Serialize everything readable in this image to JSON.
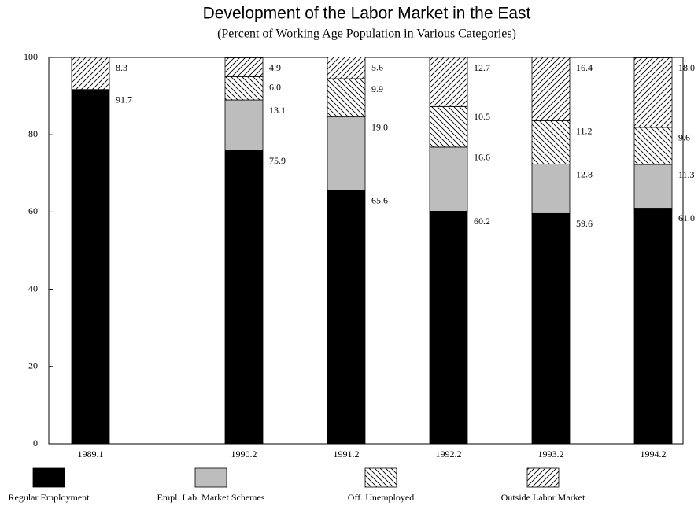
{
  "chart_data": {
    "type": "stacked-bar",
    "title": "Development of the Labor Market in the East",
    "subtitle": "(Percent of Working Age Population in Various Categories)",
    "categories": [
      "1989.1",
      null,
      null,
      "1990.2",
      null,
      "1991.2",
      null,
      "1992.2",
      null,
      "1993.2",
      null,
      "1994.2"
    ],
    "series": [
      {
        "name": "Regular Employment",
        "color": "#000000",
        "fill": "solid",
        "values": [
          91.7,
          null,
          null,
          75.9,
          null,
          65.6,
          null,
          60.2,
          null,
          59.6,
          null,
          61
        ],
        "value_labels": [
          "91.7",
          null,
          null,
          "75.9",
          null,
          "65.6",
          null,
          "60.2",
          null,
          "59.6",
          null,
          "61.0"
        ]
      },
      {
        "name": "Empl. Lab. Market Schemes",
        "color": "#bdbdbd",
        "fill": "solid",
        "values": [
          null,
          null,
          null,
          13.1,
          null,
          19,
          null,
          16.6,
          null,
          12.8,
          null,
          11.3
        ],
        "value_labels": [
          null,
          null,
          null,
          "13.1",
          null,
          "19.0",
          null,
          "16.6",
          null,
          "12.8",
          null,
          "11.3"
        ]
      },
      {
        "name": "Off. Unemployed",
        "color": "#000000",
        "fill": "backslash",
        "values": [
          null,
          null,
          null,
          6,
          null,
          9.9,
          null,
          10.5,
          null,
          11.2,
          null,
          9.6
        ],
        "value_labels": [
          null,
          null,
          null,
          "6.0",
          null,
          "9.9",
          null,
          "10.5",
          null,
          "11.2",
          null,
          "9.6"
        ]
      },
      {
        "name": "Outside Labor Market",
        "color": "#000000",
        "fill": "slash",
        "values": [
          8.3,
          null,
          null,
          4.9,
          null,
          5.6,
          null,
          12.7,
          null,
          16.4,
          null,
          18
        ],
        "value_labels": [
          "8.3",
          null,
          null,
          "4.9",
          null,
          "5.6",
          null,
          "12.7",
          null,
          "16.4",
          null,
          "18.0"
        ]
      }
    ],
    "ylim": [
      0,
      100
    ],
    "yticks": [
      0,
      20,
      40,
      60,
      80,
      100
    ],
    "grid": false
  }
}
